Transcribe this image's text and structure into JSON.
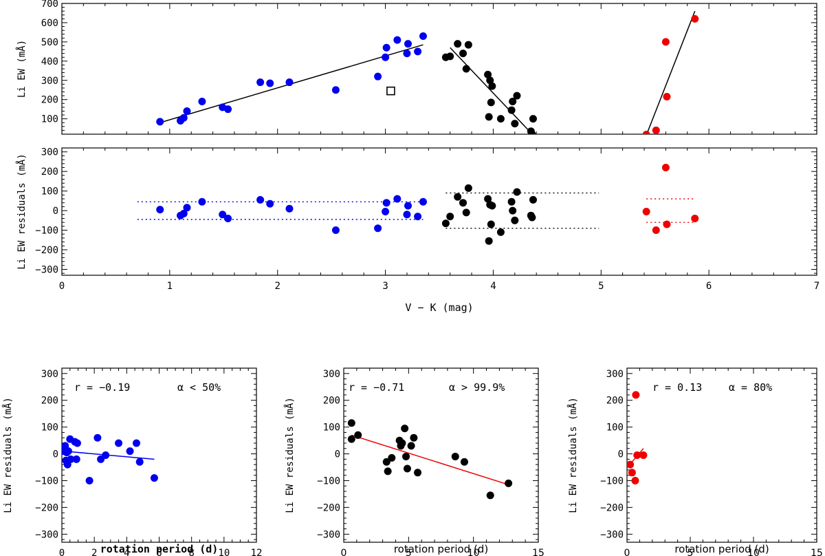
{
  "chart_data": [
    {
      "id": "top",
      "type": "scatter",
      "title": "",
      "xlabel": "",
      "ylabel": "Li EW (mÅ)",
      "xlim": [
        0,
        7
      ],
      "ylim": [
        20,
        700
      ],
      "x_ticks": [],
      "y_ticks": [
        100,
        200,
        300,
        400,
        500,
        600,
        700
      ],
      "y_tick_labels": [
        "100",
        "200",
        "300",
        "400",
        "500",
        "600",
        "700"
      ],
      "series": [
        {
          "name": "blue",
          "color": "#0000ee",
          "marker": "circle",
          "x": [
            0.91,
            1.1,
            1.13,
            1.16,
            1.3,
            1.49,
            1.54,
            1.84,
            1.93,
            2.11,
            2.54,
            2.93,
            3.0,
            3.01,
            3.11,
            3.2,
            3.21,
            3.3,
            3.35
          ],
          "y": [
            85,
            90,
            105,
            140,
            190,
            160,
            150,
            290,
            285,
            290,
            250,
            320,
            420,
            470,
            510,
            440,
            490,
            450,
            530
          ]
        },
        {
          "name": "black",
          "color": "#000000",
          "marker": "circle",
          "x": [
            3.56,
            3.6,
            3.67,
            3.72,
            3.75,
            3.77,
            3.95,
            3.96,
            3.97,
            3.98,
            3.99,
            4.07,
            4.17,
            4.18,
            4.2,
            4.22,
            4.35,
            4.36,
            4.37
          ],
          "y": [
            420,
            425,
            490,
            440,
            360,
            485,
            330,
            110,
            300,
            185,
            270,
            100,
            145,
            190,
            75,
            220,
            35,
            20,
            100
          ]
        },
        {
          "name": "red",
          "color": "#ee0000",
          "marker": "circle",
          "x": [
            5.42,
            5.51,
            5.6,
            5.61,
            5.87
          ],
          "y": [
            18,
            40,
            500,
            215,
            620
          ]
        },
        {
          "name": "open-square",
          "color": "#000000",
          "marker": "open-square",
          "x": [
            3.05
          ],
          "y": [
            245
          ]
        }
      ],
      "lines": [
        {
          "color": "#000000",
          "style": "solid",
          "x": [
            0.91,
            3.35
          ],
          "y": [
            80,
            485
          ]
        },
        {
          "color": "#000000",
          "style": "solid",
          "x": [
            3.6,
            4.37
          ],
          "y": [
            470,
            15
          ]
        },
        {
          "color": "#000000",
          "style": "solid",
          "x": [
            5.42,
            5.87
          ],
          "y": [
            15,
            660
          ]
        }
      ],
      "annotations": []
    },
    {
      "id": "middle",
      "type": "scatter",
      "title": "",
      "xlabel": "V − K (mag)",
      "ylabel": "Li EW residuals (mÅ)",
      "xlim": [
        0,
        7
      ],
      "ylim": [
        -330,
        320
      ],
      "x_ticks": [
        0,
        1,
        2,
        3,
        4,
        5,
        6,
        7
      ],
      "x_tick_labels": [
        "0",
        "1",
        "2",
        "3",
        "4",
        "5",
        "6",
        "7"
      ],
      "y_ticks": [
        -300,
        -200,
        -100,
        0,
        100,
        200,
        300
      ],
      "y_tick_labels": [
        "−300",
        "−200",
        "−100",
        "0",
        "100",
        "200",
        "300"
      ],
      "series": [
        {
          "name": "blue",
          "color": "#0000ee",
          "marker": "circle",
          "x": [
            0.91,
            1.1,
            1.13,
            1.16,
            1.3,
            1.49,
            1.54,
            1.84,
            1.93,
            2.11,
            2.54,
            2.93,
            3.0,
            3.01,
            3.11,
            3.2,
            3.21,
            3.3,
            3.35
          ],
          "y": [
            5,
            -25,
            -15,
            15,
            45,
            -20,
            -40,
            55,
            35,
            10,
            -100,
            -90,
            -5,
            40,
            60,
            -20,
            25,
            -30,
            45
          ]
        },
        {
          "name": "black",
          "color": "#000000",
          "marker": "circle",
          "x": [
            3.56,
            3.6,
            3.67,
            3.72,
            3.75,
            3.77,
            3.95,
            3.96,
            3.97,
            3.98,
            3.99,
            4.07,
            4.17,
            4.18,
            4.2,
            4.22,
            4.35,
            4.36,
            4.37
          ],
          "y": [
            -65,
            -30,
            70,
            40,
            -10,
            115,
            60,
            -155,
            30,
            -70,
            25,
            -110,
            45,
            0,
            -50,
            95,
            -25,
            -35,
            55
          ]
        },
        {
          "name": "red",
          "color": "#ee0000",
          "marker": "circle",
          "x": [
            5.42,
            5.51,
            5.6,
            5.61,
            5.87
          ],
          "y": [
            -5,
            -100,
            220,
            -70,
            -40
          ]
        }
      ],
      "lines": [
        {
          "color": "#0000ee",
          "style": "dotted",
          "x": [
            0.7,
            3.35
          ],
          "y": [
            45,
            45
          ]
        },
        {
          "color": "#0000ee",
          "style": "dotted",
          "x": [
            0.7,
            3.35
          ],
          "y": [
            -45,
            -45
          ]
        },
        {
          "color": "#000000",
          "style": "dotted",
          "x": [
            3.56,
            4.98
          ],
          "y": [
            90,
            90
          ]
        },
        {
          "color": "#000000",
          "style": "dotted",
          "x": [
            3.56,
            4.98
          ],
          "y": [
            -90,
            -90
          ]
        },
        {
          "color": "#ee0000",
          "style": "dotted",
          "x": [
            5.42,
            5.87
          ],
          "y": [
            60,
            60
          ]
        },
        {
          "color": "#ee0000",
          "style": "dotted",
          "x": [
            5.42,
            5.87
          ],
          "y": [
            -60,
            -60
          ]
        }
      ],
      "annotations": []
    },
    {
      "id": "bottom-left",
      "type": "scatter",
      "title": "",
      "xlabel": "rotation period (d)",
      "ylabel": "Li EW residuals (mÅ)",
      "xlim": [
        0,
        12
      ],
      "ylim": [
        -330,
        320
      ],
      "x_ticks": [
        0,
        2,
        4,
        6,
        8,
        10,
        12
      ],
      "x_tick_labels": [
        "0",
        "2",
        "4",
        "6",
        "8",
        "10",
        "12"
      ],
      "y_ticks": [
        -300,
        -200,
        -100,
        0,
        100,
        200,
        300
      ],
      "y_tick_labels": [
        "−300",
        "−200",
        "−100",
        "0",
        "100",
        "200",
        "300"
      ],
      "series": [
        {
          "name": "blue",
          "color": "#0000ee",
          "marker": "circle",
          "x": [
            0.1,
            0.15,
            0.2,
            0.25,
            0.3,
            0.35,
            0.4,
            0.5,
            0.55,
            0.8,
            0.9,
            0.95,
            1.7,
            2.2,
            2.4,
            2.7,
            3.5,
            4.2,
            4.6,
            4.8,
            5.7
          ],
          "y": [
            10,
            20,
            30,
            -25,
            5,
            -40,
            10,
            55,
            -20,
            45,
            -20,
            40,
            -100,
            60,
            -20,
            -5,
            40,
            10,
            40,
            -30,
            -90
          ]
        }
      ],
      "lines": [
        {
          "color": "#0000ee",
          "style": "solid",
          "x": [
            0.1,
            5.7
          ],
          "y": [
            10,
            -20
          ]
        }
      ],
      "annotations": [
        "r = −0.19",
        "α < 50%"
      ]
    },
    {
      "id": "bottom-middle",
      "type": "scatter",
      "title": "",
      "xlabel": "rotation period (d)",
      "ylabel": "Li EW residuals (mÅ)",
      "xlim": [
        0,
        15
      ],
      "ylim": [
        -330,
        320
      ],
      "x_ticks": [
        0,
        5,
        10,
        15
      ],
      "x_tick_labels": [
        "0",
        "5",
        "10",
        "15"
      ],
      "y_ticks": [
        -300,
        -200,
        -100,
        0,
        100,
        200,
        300
      ],
      "y_tick_labels": [
        "−300",
        "−200",
        "−100",
        "0",
        "100",
        "200",
        "300"
      ],
      "series": [
        {
          "name": "black",
          "color": "#000000",
          "marker": "circle",
          "x": [
            0.6,
            0.6,
            1.1,
            3.3,
            3.4,
            3.7,
            4.3,
            4.4,
            4.5,
            4.7,
            4.8,
            4.9,
            5.2,
            5.4,
            5.7,
            8.6,
            9.3,
            11.3,
            12.7
          ],
          "y": [
            115,
            55,
            70,
            -30,
            -65,
            -15,
            50,
            30,
            40,
            95,
            -10,
            -55,
            30,
            60,
            -70,
            -10,
            -30,
            -155,
            -110
          ]
        }
      ],
      "lines": [
        {
          "color": "#ee0000",
          "style": "solid",
          "x": [
            0.6,
            12.7
          ],
          "y": [
            70,
            -115
          ]
        }
      ],
      "annotations": [
        "r = −0.71",
        "α > 99.9%"
      ]
    },
    {
      "id": "bottom-right",
      "type": "scatter",
      "title": "",
      "xlabel": "rotation period (d)",
      "ylabel": "Li EW residuals (mÅ)",
      "xlim": [
        0,
        15
      ],
      "ylim": [
        -330,
        320
      ],
      "x_ticks": [
        0,
        5,
        10,
        15
      ],
      "x_tick_labels": [
        "0",
        "5",
        "10",
        "15"
      ],
      "y_ticks": [
        -300,
        -200,
        -100,
        0,
        100,
        200,
        300
      ],
      "y_tick_labels": [
        "−300",
        "−200",
        "−100",
        "0",
        "100",
        "200",
        "300"
      ],
      "series": [
        {
          "name": "red",
          "color": "#ee0000",
          "marker": "circle",
          "x": [
            0.25,
            0.4,
            0.65,
            0.7,
            0.8,
            1.3
          ],
          "y": [
            -40,
            -70,
            -100,
            220,
            -5,
            -5
          ]
        }
      ],
      "lines": [
        {
          "color": "#ee0000",
          "style": "solid",
          "x": [
            0.4,
            1.3
          ],
          "y": [
            -30,
            20
          ]
        }
      ],
      "annotations": [
        "r = 0.13",
        "α = 80%"
      ]
    }
  ]
}
